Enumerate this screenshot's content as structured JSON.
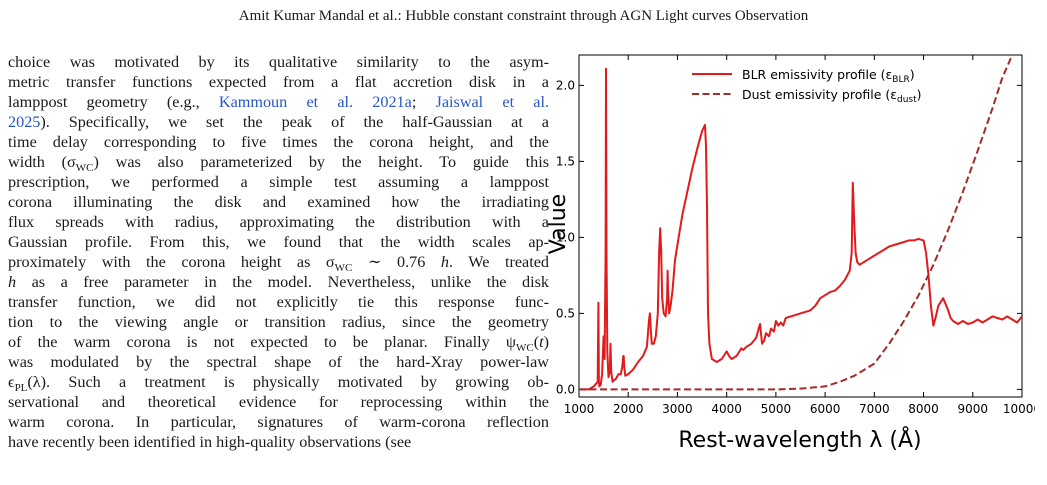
{
  "header": {
    "running_title": "Amit Kumar Mandal  et al.: Hubble constant constraint through AGN Light curves Observation"
  },
  "body_text": {
    "lines": [
      [
        {
          "t": "choice was motivated by its qualitative similarity to the asym-"
        }
      ],
      [
        {
          "t": "metric transfer functions expected from a flat accretion disk in a"
        }
      ],
      [
        {
          "t": "lamppost geometry (e.g., "
        },
        {
          "t": "Kammoun et al. 2021a",
          "c": 1
        },
        {
          "t": "; "
        },
        {
          "t": "Jaiswal et al.",
          "c": 1
        }
      ],
      [
        {
          "t": "2025",
          "c": 1
        },
        {
          "t": "). Specifically, we set the peak of the half-Gaussian at a"
        }
      ],
      [
        {
          "t": "time delay corresponding to five times the corona height, and the"
        }
      ],
      [
        {
          "t": "width (σ"
        },
        {
          "t": "WC",
          "s": 1
        },
        {
          "t": ") was also parameterized by the height. To guide this"
        }
      ],
      [
        {
          "t": "prescription, we performed a simple test assuming a lamppost"
        }
      ],
      [
        {
          "t": "corona illuminating the disk and examined how the irradiating"
        }
      ],
      [
        {
          "t": "flux spreads with radius, approximating the distribution with a"
        }
      ],
      [
        {
          "t": "Gaussian profile. From this, we found that the width scales ap-"
        }
      ],
      [
        {
          "t": "proximately with the corona height as σ"
        },
        {
          "t": "WC",
          "s": 1
        },
        {
          "t": " ∼ 0.76 "
        },
        {
          "t": "h",
          "i": 1
        },
        {
          "t": ". We treated"
        }
      ],
      [
        {
          "t": "h",
          "i": 1
        },
        {
          "t": " as a free parameter in the model. Nevertheless, unlike the disk"
        }
      ],
      [
        {
          "t": "transfer function, we did not explicitly tie this response func-"
        }
      ],
      [
        {
          "t": "tion to the viewing angle or transition radius, since the geometry"
        }
      ],
      [
        {
          "t": "of the warm corona is not expected to be planar. Finally ψ"
        },
        {
          "t": "WC",
          "s": 1
        },
        {
          "t": "("
        },
        {
          "t": "t",
          "i": 1
        },
        {
          "t": ")"
        }
      ],
      [
        {
          "t": "was modulated by the spectral shape of the hard-Xray power-law"
        }
      ],
      [
        {
          "t": "ϵ"
        },
        {
          "t": "PL",
          "s": 1
        },
        {
          "t": "(λ). Such a treatment is physically motivated by growing ob-"
        }
      ],
      [
        {
          "t": "servational and theoretical evidence for reprocessing within the"
        }
      ],
      [
        {
          "t": "warm corona. In particular, signatures of warm-corona reflection"
        }
      ],
      [
        {
          "t": "have recently been identified in high-quality observations (see"
        }
      ]
    ]
  },
  "chart_data": {
    "type": "line",
    "xlabel": "Rest-wavelength λ (Å)",
    "ylabel": "Value",
    "xlim": [
      1000,
      10000
    ],
    "ylim": [
      -0.05,
      2.2
    ],
    "xticks": [
      "1000",
      "2000",
      "3000",
      "4000",
      "5000",
      "6000",
      "7000",
      "8000",
      "9000",
      "10000"
    ],
    "xtick_values": [
      1000,
      2000,
      3000,
      4000,
      5000,
      6000,
      7000,
      8000,
      9000,
      10000
    ],
    "yticks": [
      "0.0",
      "0.5",
      "1.0",
      "1.5",
      "2.0"
    ],
    "ytick_values": [
      0,
      0.5,
      1.0,
      1.5,
      2.0
    ],
    "legend_position": "top-right",
    "series": [
      {
        "name": "BLR emissivity profile (ε",
        "name_sub": "BLR",
        "name_tail": ")",
        "color": "#e31a1c",
        "style": "solid",
        "x": [
          1000,
          1100,
          1200,
          1300,
          1380,
          1395,
          1405,
          1415,
          1440,
          1470,
          1500,
          1520,
          1540,
          1549,
          1558,
          1575,
          1600,
          1625,
          1640,
          1655,
          1680,
          1710,
          1750,
          1800,
          1850,
          1880,
          1900,
          1909,
          1918,
          1940,
          2000,
          2100,
          2200,
          2300,
          2380,
          2420,
          2440,
          2460,
          2480,
          2520,
          2560,
          2600,
          2630,
          2650,
          2670,
          2690,
          2720,
          2760,
          2790,
          2800,
          2810,
          2830,
          2860,
          2900,
          2950,
          3000,
          3050,
          3100,
          3200,
          3300,
          3400,
          3500,
          3560,
          3580,
          3600,
          3620,
          3650,
          3700,
          3800,
          3900,
          4000,
          4050,
          4100,
          4200,
          4300,
          4340,
          4400,
          4500,
          4600,
          4650,
          4680,
          4700,
          4720,
          4760,
          4800,
          4861,
          4900,
          4960,
          5000,
          5050,
          5100,
          5150,
          5200,
          5300,
          5500,
          5700,
          5800,
          5900,
          6000,
          6100,
          6200,
          6300,
          6400,
          6500,
          6540,
          6563,
          6590,
          6620,
          6650,
          6700,
          6800,
          6900,
          7000,
          7100,
          7200,
          7300,
          7400,
          7500,
          7600,
          7700,
          7800,
          7900,
          8000,
          8050,
          8100,
          8150,
          8200,
          8250,
          8300,
          8400,
          8500,
          8550,
          8600,
          8700,
          8800,
          8900,
          9000,
          9100,
          9200,
          9300,
          9400,
          9500,
          9600,
          9700,
          9800,
          9900,
          10000
        ],
        "y": [
          0,
          0,
          0,
          0.02,
          0.05,
          0.57,
          0.05,
          0.02,
          0.03,
          0.1,
          0.35,
          0.2,
          0.9,
          2.11,
          0.9,
          0.25,
          0.08,
          0.12,
          0.3,
          0.12,
          0.05,
          0.06,
          0.07,
          0.1,
          0.1,
          0.15,
          0.22,
          0.22,
          0.15,
          0.09,
          0.1,
          0.13,
          0.18,
          0.22,
          0.28,
          0.45,
          0.5,
          0.38,
          0.3,
          0.3,
          0.35,
          0.5,
          0.92,
          1.06,
          0.9,
          0.6,
          0.5,
          0.48,
          0.6,
          0.78,
          0.65,
          0.5,
          0.55,
          0.65,
          0.85,
          0.95,
          1.05,
          1.15,
          1.3,
          1.45,
          1.58,
          1.7,
          1.74,
          1.6,
          1.2,
          0.5,
          0.3,
          0.2,
          0.18,
          0.2,
          0.25,
          0.22,
          0.2,
          0.22,
          0.27,
          0.26,
          0.28,
          0.3,
          0.34,
          0.4,
          0.43,
          0.36,
          0.3,
          0.32,
          0.37,
          0.35,
          0.4,
          0.38,
          0.45,
          0.42,
          0.44,
          0.42,
          0.47,
          0.48,
          0.5,
          0.52,
          0.55,
          0.6,
          0.62,
          0.64,
          0.65,
          0.68,
          0.72,
          0.78,
          0.9,
          1.36,
          1.1,
          0.9,
          0.84,
          0.82,
          0.84,
          0.86,
          0.88,
          0.9,
          0.92,
          0.94,
          0.95,
          0.96,
          0.97,
          0.98,
          0.98,
          0.99,
          0.98,
          0.9,
          0.75,
          0.55,
          0.42,
          0.48,
          0.55,
          0.6,
          0.52,
          0.47,
          0.45,
          0.43,
          0.45,
          0.43,
          0.44,
          0.46,
          0.44,
          0.46,
          0.48,
          0.47,
          0.46,
          0.48,
          0.46,
          0.44,
          0.48
        ]
      },
      {
        "name": "Dust emissivity profile (ε",
        "name_sub": "dust",
        "name_tail": ")",
        "color": "#a52a2a",
        "style": "dashed",
        "x": [
          1000,
          2000,
          3000,
          4000,
          5000,
          5500,
          6000,
          6300,
          6600,
          7000,
          7300,
          7600,
          7900,
          8200,
          8500,
          8800,
          9100,
          9400,
          9600,
          9800
        ],
        "y": [
          0,
          0,
          0,
          0,
          0,
          0.005,
          0.02,
          0.05,
          0.09,
          0.17,
          0.3,
          0.45,
          0.62,
          0.82,
          1.05,
          1.3,
          1.57,
          1.85,
          2.05,
          2.2
        ]
      }
    ]
  }
}
